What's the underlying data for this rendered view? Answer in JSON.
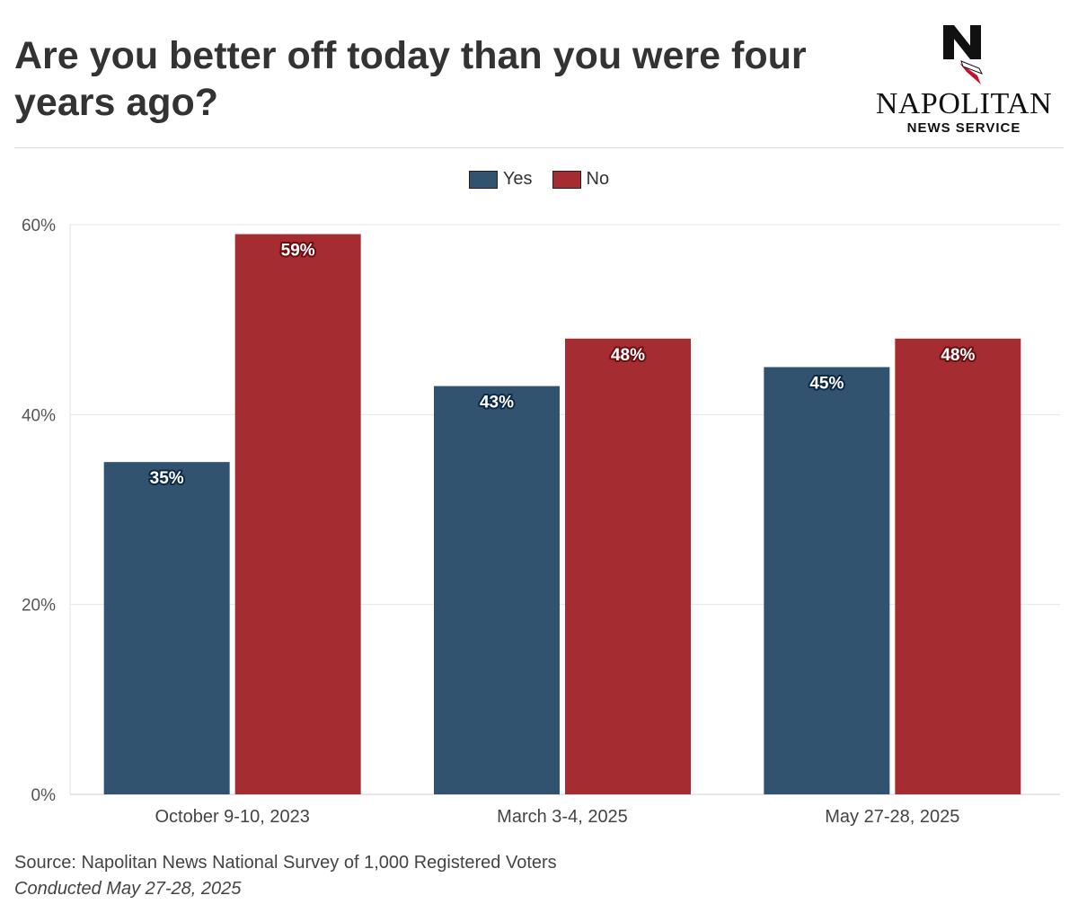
{
  "header": {
    "title": "Are you better off today than you were four years ago?"
  },
  "logo": {
    "name": "NAPOLITAN",
    "sub": "NEWS SERVICE"
  },
  "colors": {
    "yes": "#315370",
    "no": "#a52c31",
    "yes_label_outline": "#0d2a44",
    "no_label_outline": "#6b0e12"
  },
  "chart_data": {
    "type": "bar",
    "categories": [
      "October 9-10, 2023",
      "March 3-4, 2025",
      "May 27-28, 2025"
    ],
    "series": [
      {
        "name": "Yes",
        "values": [
          35,
          43,
          45
        ]
      },
      {
        "name": "No",
        "values": [
          59,
          48,
          48
        ]
      }
    ],
    "data_labels": [
      [
        "35%",
        "43%",
        "45%"
      ],
      [
        "59%",
        "48%",
        "48%"
      ]
    ],
    "yticks": [
      0,
      20,
      40,
      60
    ],
    "ytick_labels": [
      "0%",
      "20%",
      "40%",
      "60%"
    ],
    "ylim": [
      0,
      60
    ],
    "legend": "top-center",
    "grid": true
  },
  "footer": {
    "source": "Source: Napolitan News National Survey of 1,000 Registered Voters",
    "conducted": "Conducted May 27-28, 2025"
  }
}
